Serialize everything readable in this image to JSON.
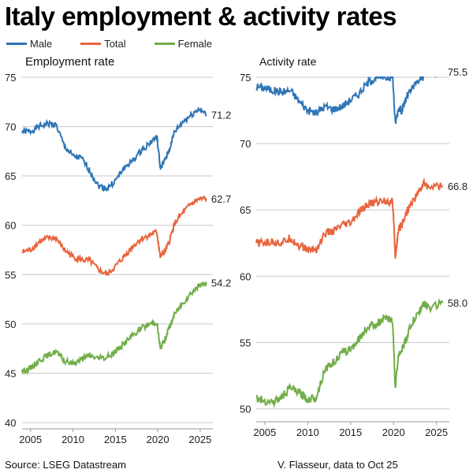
{
  "title": "Italy employment & activity rates",
  "legend": [
    {
      "label": "Male",
      "color": "#2e75b6"
    },
    {
      "label": "Total",
      "color": "#e8643c"
    },
    {
      "label": "Female",
      "color": "#70ad47"
    }
  ],
  "footer": {
    "source": "Source: LSEG Datastream",
    "credit": "V. Flasseur, data to Oct 25"
  },
  "chart_data": [
    {
      "type": "line",
      "title": "Employment rate",
      "xlabel": "",
      "ylabel": "",
      "xlim": [
        2004,
        2026.5
      ],
      "ylim": [
        40,
        75
      ],
      "xticks": [
        2005,
        2010,
        2015,
        2020,
        2025
      ],
      "yticks": [
        40,
        45,
        50,
        55,
        60,
        65,
        70,
        75
      ],
      "grid": "horizontal",
      "end_labels": [
        "71.2",
        "62.7",
        "54.2"
      ],
      "x": [
        2004,
        2005,
        2006,
        2007,
        2008,
        2009,
        2010,
        2011,
        2012,
        2013,
        2014,
        2015,
        2016,
        2017,
        2018,
        2019,
        2019.9,
        2020.3,
        2020.8,
        2021.3,
        2022,
        2023,
        2024,
        2024.8,
        2025.75
      ],
      "series": [
        {
          "name": "Male",
          "values": [
            69.5,
            69.5,
            70,
            70.3,
            70.2,
            68,
            67,
            66.8,
            65.5,
            64,
            63.7,
            64.5,
            65.8,
            66.5,
            67.5,
            68.3,
            69,
            65.8,
            66.5,
            67.5,
            69.5,
            70.5,
            71.2,
            71.8,
            71.2
          ]
        },
        {
          "name": "Total",
          "values": [
            57.3,
            57.5,
            58.3,
            58.7,
            58.7,
            57.5,
            56.8,
            56.5,
            56.4,
            55.5,
            55,
            55.8,
            56.8,
            57.8,
            58.6,
            59,
            59.3,
            56.8,
            57.3,
            58.2,
            60.2,
            61.3,
            62.2,
            62.6,
            62.7
          ]
        },
        {
          "name": "Female",
          "values": [
            45.2,
            45.5,
            46.3,
            46.8,
            47.2,
            46.2,
            46,
            46.4,
            46.8,
            46.5,
            46.6,
            47.2,
            48,
            48.8,
            49.5,
            50,
            50.2,
            47.5,
            48.3,
            49.5,
            51,
            52.2,
            53.2,
            53.8,
            54.2
          ]
        }
      ]
    },
    {
      "type": "line",
      "title": "Activity rate",
      "xlabel": "",
      "ylabel": "",
      "xlim": [
        2004,
        2026.5
      ],
      "ylim": [
        49.5,
        75
      ],
      "xticks": [
        2005,
        2010,
        2015,
        2020,
        2025
      ],
      "yticks": [
        50,
        55,
        60,
        65,
        70,
        75
      ],
      "grid": "horizontal",
      "end_labels": [
        "75.5",
        "66.8",
        "58.0"
      ],
      "x": [
        2004,
        2005,
        2006,
        2007,
        2008,
        2009,
        2010,
        2011,
        2012,
        2013,
        2014,
        2015,
        2016,
        2017,
        2018,
        2019,
        2019.9,
        2020.2,
        2020.6,
        2021,
        2021.5,
        2022,
        2023,
        2023.5,
        2024,
        2025.75
      ],
      "series": [
        {
          "name": "Male",
          "values": [
            74.3,
            74.2,
            74,
            73.9,
            74,
            73.2,
            72.5,
            72.3,
            72.8,
            72.6,
            72.8,
            73.3,
            73.8,
            74.6,
            75,
            75,
            75,
            71.5,
            72.7,
            72.5,
            73.5,
            74,
            74.8,
            75.1,
            75.3,
            75.5
          ]
        },
        {
          "name": "Total",
          "values": [
            62.5,
            62.5,
            62.6,
            62.5,
            62.9,
            62.3,
            62,
            62,
            63.2,
            63.4,
            63.8,
            64,
            64.8,
            65.4,
            65.6,
            65.7,
            65.6,
            61.5,
            63.5,
            64,
            64.8,
            65.4,
            66.4,
            67,
            66.8,
            66.8
          ]
        },
        {
          "name": "Female",
          "values": [
            50.8,
            50.6,
            50.5,
            50.9,
            51.6,
            51.2,
            50.7,
            50.9,
            53,
            53.5,
            54.2,
            54.5,
            55.3,
            56.2,
            56.4,
            56.8,
            56.6,
            51.6,
            54.2,
            54.5,
            55.3,
            56.3,
            57.3,
            58,
            57.6,
            58
          ]
        }
      ]
    }
  ]
}
